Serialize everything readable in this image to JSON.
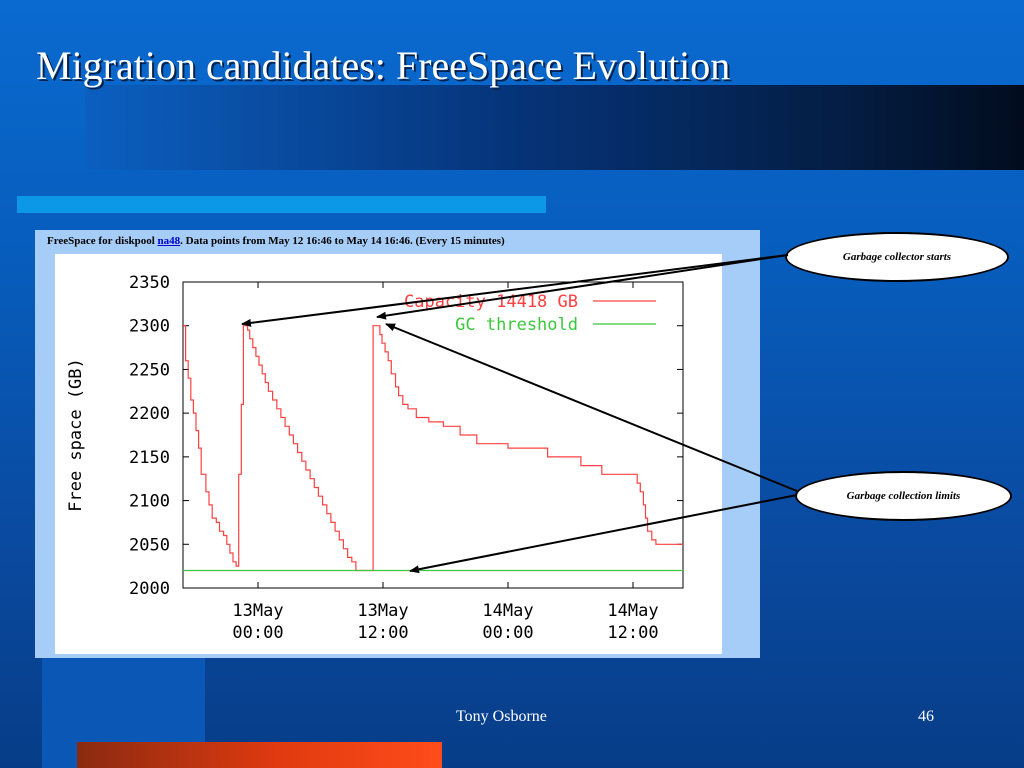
{
  "slide": {
    "title": "Migration candidates: FreeSpace Evolution",
    "author": "Tony Osborne",
    "page_number": "46"
  },
  "panel": {
    "caption_before": "FreeSpace for diskpool ",
    "caption_link": "na48",
    "caption_after": ". Data points from May 12 16:46 to May 14 16:46. (Every 15 minutes)"
  },
  "callouts": {
    "gc_starts": "Garbage collector starts",
    "gc_limits": "Garbage collection limits"
  },
  "colors": {
    "capacity": "#ff4040",
    "threshold": "#3cc83c"
  },
  "chart_data": {
    "type": "line",
    "title": "",
    "ylabel": "Free space (GB)",
    "xlabel": "",
    "ylim": [
      2000,
      2350
    ],
    "xlim": [
      0,
      48
    ],
    "yticks": [
      2000,
      2050,
      2100,
      2150,
      2200,
      2250,
      2300,
      2350
    ],
    "xticks": [
      {
        "x": 7.2,
        "label": [
          "13May",
          "00:00"
        ]
      },
      {
        "x": 19.2,
        "label": [
          "13May",
          "12:00"
        ]
      },
      {
        "x": 31.2,
        "label": [
          "14May",
          "00:00"
        ]
      },
      {
        "x": 43.2,
        "label": [
          "14May",
          "12:00"
        ]
      }
    ],
    "series": [
      {
        "name": "Capacity 14418 GB",
        "step": true,
        "points": [
          [
            0.0,
            2300
          ],
          [
            0.25,
            2260
          ],
          [
            0.5,
            2240
          ],
          [
            0.75,
            2215
          ],
          [
            1.0,
            2200
          ],
          [
            1.25,
            2180
          ],
          [
            1.5,
            2160
          ],
          [
            1.75,
            2130
          ],
          [
            2.2,
            2110
          ],
          [
            2.5,
            2095
          ],
          [
            2.8,
            2080
          ],
          [
            3.2,
            2075
          ],
          [
            3.5,
            2065
          ],
          [
            3.9,
            2060
          ],
          [
            4.2,
            2050
          ],
          [
            4.5,
            2040
          ],
          [
            4.8,
            2030
          ],
          [
            5.1,
            2025
          ],
          [
            5.3,
            2025
          ],
          [
            5.35,
            2130
          ],
          [
            5.6,
            2210
          ],
          [
            5.8,
            2300
          ],
          [
            6.2,
            2295
          ],
          [
            6.4,
            2285
          ],
          [
            6.7,
            2275
          ],
          [
            7.0,
            2265
          ],
          [
            7.3,
            2255
          ],
          [
            7.6,
            2245
          ],
          [
            7.9,
            2235
          ],
          [
            8.2,
            2225
          ],
          [
            8.6,
            2215
          ],
          [
            9.0,
            2205
          ],
          [
            9.4,
            2195
          ],
          [
            9.8,
            2185
          ],
          [
            10.2,
            2175
          ],
          [
            10.6,
            2165
          ],
          [
            11.0,
            2155
          ],
          [
            11.4,
            2145
          ],
          [
            11.8,
            2135
          ],
          [
            12.2,
            2125
          ],
          [
            12.6,
            2115
          ],
          [
            13.0,
            2105
          ],
          [
            13.4,
            2095
          ],
          [
            13.8,
            2085
          ],
          [
            14.2,
            2075
          ],
          [
            14.6,
            2065
          ],
          [
            15.0,
            2055
          ],
          [
            15.4,
            2045
          ],
          [
            15.8,
            2035
          ],
          [
            16.2,
            2030
          ],
          [
            16.6,
            2020
          ],
          [
            17.2,
            2020
          ],
          [
            18.2,
            2020
          ],
          [
            18.25,
            2300
          ],
          [
            18.6,
            2300
          ],
          [
            18.9,
            2290
          ],
          [
            19.1,
            2280
          ],
          [
            19.4,
            2270
          ],
          [
            19.7,
            2260
          ],
          [
            20.0,
            2245
          ],
          [
            20.4,
            2230
          ],
          [
            20.7,
            2220
          ],
          [
            21.1,
            2210
          ],
          [
            21.6,
            2205
          ],
          [
            22.4,
            2195
          ],
          [
            23.6,
            2190
          ],
          [
            25.0,
            2185
          ],
          [
            26.6,
            2175
          ],
          [
            28.2,
            2165
          ],
          [
            31.2,
            2160
          ],
          [
            33.0,
            2160
          ],
          [
            35.0,
            2150
          ],
          [
            36.4,
            2150
          ],
          [
            38.2,
            2140
          ],
          [
            40.2,
            2130
          ],
          [
            43.0,
            2130
          ],
          [
            43.6,
            2120
          ],
          [
            43.9,
            2110
          ],
          [
            44.2,
            2095
          ],
          [
            44.4,
            2080
          ],
          [
            44.6,
            2065
          ],
          [
            45.0,
            2055
          ],
          [
            45.4,
            2050
          ],
          [
            46.4,
            2050
          ],
          [
            48.0,
            2050
          ]
        ]
      },
      {
        "name": "GC threshold",
        "step": false,
        "points": [
          [
            0,
            2020
          ],
          [
            48,
            2020
          ]
        ]
      }
    ],
    "legend_position": "top-right",
    "grid": false
  }
}
